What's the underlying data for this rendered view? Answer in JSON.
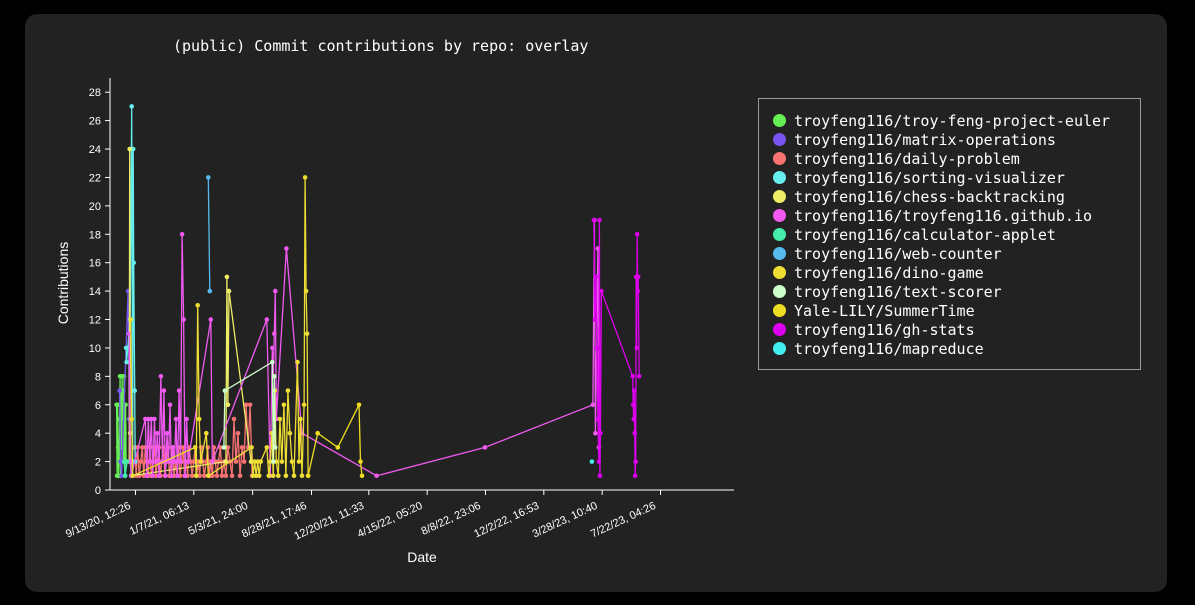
{
  "chart_data": {
    "type": "line",
    "title": "(public) Commit contributions by repo: overlay",
    "xlabel": "Date",
    "ylabel": "Contributions",
    "ylim": [
      0,
      29
    ],
    "yticks": [
      0,
      2,
      4,
      6,
      8,
      10,
      12,
      14,
      16,
      18,
      20,
      22,
      24,
      26,
      28
    ],
    "xlim": [
      "2020-07-25T00:00",
      "2023-12-15T00:00"
    ],
    "xticks": [
      {
        "t": "2020-09-13T12:26",
        "label": "9/13/20, 12:26"
      },
      {
        "t": "2021-01-07T06:13",
        "label": "1/7/21, 06:13"
      },
      {
        "t": "2021-05-04T00:00",
        "label": "5/3/21, 24:00"
      },
      {
        "t": "2021-08-28T17:46",
        "label": "8/28/21, 17:46"
      },
      {
        "t": "2021-12-20T11:33",
        "label": "12/20/21, 11:33"
      },
      {
        "t": "2022-04-15T05:20",
        "label": "4/15/22, 05:20"
      },
      {
        "t": "2022-08-08T23:06",
        "label": "8/8/22, 23:06"
      },
      {
        "t": "2022-12-02T16:53",
        "label": "12/2/22, 16:53"
      },
      {
        "t": "2023-03-28T10:40",
        "label": "3/28/23, 10:40"
      },
      {
        "t": "2023-07-22T04:26",
        "label": "7/22/23, 04:26"
      }
    ],
    "grid": false,
    "legend_position": "right",
    "series": [
      {
        "name": "troyfeng116/troy-feng-project-euler",
        "color": "#66ee55",
        "points": [
          [
            "2020-08-07",
            6
          ],
          [
            "2020-08-08",
            1
          ],
          [
            "2020-08-09",
            6
          ],
          [
            "2020-08-10",
            3
          ],
          [
            "2020-08-11",
            1
          ],
          [
            "2020-08-12",
            2
          ],
          [
            "2020-08-13",
            5
          ],
          [
            "2020-08-14",
            8
          ],
          [
            "2020-08-15",
            1
          ],
          [
            "2020-08-16",
            7
          ],
          [
            "2020-08-17",
            3
          ],
          [
            "2020-08-18",
            8
          ],
          [
            "2020-08-19",
            5
          ],
          [
            "2020-08-20",
            7
          ],
          [
            "2020-08-21",
            2
          ],
          [
            "2020-08-22",
            8
          ],
          [
            "2020-08-23",
            4
          ],
          [
            "2020-08-24",
            1
          ],
          [
            "2020-08-25",
            6
          ],
          [
            "2020-08-26",
            2
          ]
        ]
      },
      {
        "name": "troyfeng116/matrix-operations",
        "color": "#7755ee",
        "points": [
          [
            "2020-08-13",
            7
          ],
          [
            "2020-08-15",
            2
          ],
          [
            "2020-08-17",
            1
          ],
          [
            "2020-08-30",
            14
          ],
          [
            "2020-09-01",
            5
          ],
          [
            "2020-09-03",
            2
          ],
          [
            "2020-09-05",
            1
          ]
        ]
      },
      {
        "name": "troyfeng116/daily-problem",
        "color": "#f87272",
        "points": [
          [
            "2020-09-12",
            3
          ],
          [
            "2020-09-15",
            1
          ],
          [
            "2020-09-18",
            3
          ],
          [
            "2020-09-21",
            1
          ],
          [
            "2020-09-24",
            2
          ],
          [
            "2020-09-27",
            3
          ],
          [
            "2020-09-30",
            1
          ],
          [
            "2020-10-03",
            3
          ],
          [
            "2020-10-06",
            2
          ],
          [
            "2020-10-09",
            1
          ],
          [
            "2020-10-12",
            3
          ],
          [
            "2020-10-15",
            1
          ],
          [
            "2020-10-18",
            2
          ],
          [
            "2020-10-21",
            3
          ],
          [
            "2020-10-24",
            1
          ],
          [
            "2020-10-27",
            2
          ],
          [
            "2020-10-30",
            3
          ],
          [
            "2020-11-02",
            1
          ],
          [
            "2020-11-05",
            2
          ],
          [
            "2020-11-08",
            3
          ],
          [
            "2020-11-11",
            1
          ],
          [
            "2020-11-14",
            2
          ],
          [
            "2020-11-17",
            3
          ],
          [
            "2020-11-20",
            1
          ],
          [
            "2020-11-23",
            2
          ],
          [
            "2020-11-26",
            3
          ],
          [
            "2020-11-29",
            1
          ],
          [
            "2020-12-02",
            2
          ],
          [
            "2020-12-05",
            1
          ],
          [
            "2020-12-08",
            3
          ],
          [
            "2020-12-11",
            1
          ],
          [
            "2020-12-14",
            2
          ],
          [
            "2020-12-17",
            3
          ],
          [
            "2020-12-20",
            1
          ],
          [
            "2020-12-23",
            2
          ],
          [
            "2020-12-26",
            1
          ],
          [
            "2020-12-29",
            3
          ],
          [
            "2021-01-01",
            2
          ],
          [
            "2021-01-04",
            1
          ],
          [
            "2021-01-07",
            2
          ],
          [
            "2021-01-10",
            3
          ],
          [
            "2021-01-13",
            1
          ],
          [
            "2021-01-16",
            2
          ],
          [
            "2021-01-19",
            1
          ],
          [
            "2021-01-22",
            3
          ],
          [
            "2021-01-25",
            2
          ],
          [
            "2021-01-28",
            1
          ],
          [
            "2021-02-01",
            2
          ],
          [
            "2021-02-04",
            3
          ],
          [
            "2021-02-07",
            1
          ],
          [
            "2021-02-10",
            2
          ],
          [
            "2021-02-13",
            1
          ],
          [
            "2021-02-16",
            3
          ],
          [
            "2021-02-19",
            2
          ],
          [
            "2021-02-22",
            1
          ],
          [
            "2021-02-25",
            2
          ],
          [
            "2021-03-01",
            3
          ],
          [
            "2021-03-04",
            1
          ],
          [
            "2021-03-08",
            2
          ],
          [
            "2021-03-12",
            1
          ],
          [
            "2021-03-16",
            3
          ],
          [
            "2021-03-20",
            2
          ],
          [
            "2021-03-24",
            1
          ],
          [
            "2021-03-28",
            5
          ],
          [
            "2021-04-01",
            2
          ],
          [
            "2021-04-05",
            4
          ],
          [
            "2021-04-09",
            1
          ],
          [
            "2021-04-13",
            3
          ],
          [
            "2021-04-17",
            2
          ],
          [
            "2021-04-21",
            6
          ],
          [
            "2021-04-25",
            3
          ],
          [
            "2021-04-29",
            6
          ],
          [
            "2021-05-03",
            1
          ]
        ]
      },
      {
        "name": "troyfeng116/sorting-visualizer",
        "color": "#66eeee",
        "points": [
          [
            "2020-08-26",
            10
          ],
          [
            "2020-08-27",
            9
          ],
          [
            "2020-09-03",
            12
          ],
          [
            "2020-09-06",
            27
          ],
          [
            "2020-09-08",
            2
          ],
          [
            "2020-09-09",
            24
          ],
          [
            "2020-09-10",
            16
          ],
          [
            "2020-09-12",
            7
          ],
          [
            "2020-09-13",
            2
          ]
        ]
      },
      {
        "name": "troyfeng116/chess-backtracking",
        "color": "#eeee66",
        "points": [
          [
            "2020-09-01",
            2
          ],
          [
            "2020-09-02",
            24
          ],
          [
            "2020-09-03",
            4
          ],
          [
            "2020-09-05",
            1
          ],
          [
            "2021-03-12",
            2
          ],
          [
            "2021-03-14",
            15
          ],
          [
            "2021-03-16",
            6
          ],
          [
            "2021-03-18",
            14
          ],
          [
            "2021-05-01",
            2
          ]
        ]
      },
      {
        "name": "troyfeng116/troyfeng116.github.io",
        "color": "#f05af0",
        "points": [
          [
            "2020-09-01",
            11
          ],
          [
            "2020-09-03",
            2
          ],
          [
            "2020-09-05",
            1
          ],
          [
            "2020-10-03",
            5
          ],
          [
            "2020-10-06",
            1
          ],
          [
            "2020-10-09",
            5
          ],
          [
            "2020-10-12",
            2
          ],
          [
            "2020-10-15",
            5
          ],
          [
            "2020-10-18",
            1
          ],
          [
            "2020-10-21",
            5
          ],
          [
            "2020-10-24",
            2
          ],
          [
            "2020-10-27",
            4
          ],
          [
            "2020-10-30",
            1
          ],
          [
            "2020-11-03",
            8
          ],
          [
            "2020-11-06",
            2
          ],
          [
            "2020-11-09",
            7
          ],
          [
            "2020-11-12",
            1
          ],
          [
            "2020-11-15",
            4
          ],
          [
            "2020-11-18",
            2
          ],
          [
            "2020-11-21",
            6
          ],
          [
            "2020-11-24",
            1
          ],
          [
            "2020-11-27",
            3
          ],
          [
            "2020-11-30",
            2
          ],
          [
            "2020-12-03",
            5
          ],
          [
            "2020-12-06",
            1
          ],
          [
            "2020-12-09",
            7
          ],
          [
            "2020-12-12",
            2
          ],
          [
            "2020-12-15",
            18
          ],
          [
            "2020-12-18",
            12
          ],
          [
            "2020-12-21",
            1
          ],
          [
            "2020-12-24",
            5
          ],
          [
            "2020-12-27",
            2
          ],
          [
            "2021-02-10",
            12
          ],
          [
            "2021-02-13",
            2
          ],
          [
            "2021-06-01",
            12
          ],
          [
            "2021-06-08",
            1
          ],
          [
            "2021-06-12",
            10
          ],
          [
            "2021-06-14",
            8
          ],
          [
            "2021-06-16",
            11
          ],
          [
            "2021-06-18",
            14
          ],
          [
            "2021-06-20",
            5
          ],
          [
            "2021-07-10",
            17
          ],
          [
            "2021-08-10",
            4
          ],
          [
            "2022-01-05",
            1
          ],
          [
            "2022-08-08",
            3
          ],
          [
            "2023-03-10",
            6
          ],
          [
            "2023-03-13",
            19
          ],
          [
            "2023-03-15",
            4
          ],
          [
            "2023-03-18",
            12
          ],
          [
            "2023-03-20",
            17
          ],
          [
            "2023-03-22",
            3
          ]
        ]
      },
      {
        "name": "troyfeng116/calculator-applet",
        "color": "#44eeaa",
        "points": [
          [
            "2020-08-22",
            2
          ],
          [
            "2020-08-24",
            1
          ],
          [
            "2020-08-28",
            2
          ]
        ]
      },
      {
        "name": "troyfeng116/web-counter",
        "color": "#55bbee",
        "points": [
          [
            "2021-02-05",
            22
          ],
          [
            "2021-02-08",
            14
          ]
        ]
      },
      {
        "name": "troyfeng116/dino-game",
        "color": "#eedd33",
        "points": [
          [
            "2020-09-04",
            12
          ],
          [
            "2020-09-06",
            5
          ],
          [
            "2020-09-08",
            1
          ],
          [
            "2021-01-10",
            3
          ],
          [
            "2021-01-12",
            1
          ],
          [
            "2021-01-15",
            13
          ],
          [
            "2021-01-18",
            5
          ],
          [
            "2021-01-21",
            2
          ],
          [
            "2021-02-01",
            4
          ],
          [
            "2021-02-05",
            1
          ],
          [
            "2021-05-02",
            3
          ],
          [
            "2021-05-05",
            1
          ],
          [
            "2021-05-08",
            2
          ],
          [
            "2021-05-11",
            1
          ],
          [
            "2021-05-14",
            2
          ],
          [
            "2021-05-17",
            1
          ],
          [
            "2021-05-20",
            2
          ],
          [
            "2021-06-01",
            3
          ],
          [
            "2021-06-05",
            1
          ],
          [
            "2021-06-08",
            2
          ],
          [
            "2021-06-11",
            4
          ],
          [
            "2021-06-14",
            1
          ],
          [
            "2021-06-17",
            7
          ],
          [
            "2021-06-20",
            2
          ],
          [
            "2021-06-24",
            1
          ],
          [
            "2021-06-27",
            5
          ],
          [
            "2021-07-01",
            2
          ],
          [
            "2021-07-05",
            6
          ],
          [
            "2021-07-09",
            1
          ],
          [
            "2021-07-13",
            7
          ],
          [
            "2021-07-17",
            4
          ],
          [
            "2021-07-21",
            2
          ],
          [
            "2021-07-25",
            1
          ],
          [
            "2021-08-01",
            9
          ],
          [
            "2021-08-04",
            2
          ],
          [
            "2021-08-07",
            5
          ],
          [
            "2021-08-10",
            1
          ],
          [
            "2021-08-14",
            6
          ],
          [
            "2021-08-16",
            22
          ],
          [
            "2021-08-18",
            14
          ],
          [
            "2021-08-20",
            11
          ],
          [
            "2021-08-22",
            1
          ]
        ]
      },
      {
        "name": "troyfeng116/text-scorer",
        "color": "#ccffcc",
        "points": [
          [
            "2021-03-08",
            3
          ],
          [
            "2021-03-10",
            7
          ],
          [
            "2021-06-12",
            9
          ],
          [
            "2021-06-14",
            2
          ],
          [
            "2021-06-16",
            8
          ],
          [
            "2021-06-18",
            3
          ]
        ]
      },
      {
        "name": "Yale-LILY/SummerTime",
        "color": "#eedd22",
        "points": [
          [
            "2021-08-22",
            1
          ],
          [
            "2021-09-10",
            4
          ],
          [
            "2021-10-20",
            3
          ],
          [
            "2021-12-01",
            6
          ],
          [
            "2021-12-04",
            2
          ],
          [
            "2021-12-07",
            1
          ]
        ]
      },
      {
        "name": "troyfeng116/gh-stats",
        "color": "#dd00ee",
        "points": [
          [
            "2023-03-12",
            19
          ],
          [
            "2023-03-14",
            12
          ],
          [
            "2023-03-16",
            15
          ],
          [
            "2023-03-18",
            10
          ],
          [
            "2023-03-20",
            5
          ],
          [
            "2023-03-22",
            2
          ],
          [
            "2023-03-23",
            19
          ],
          [
            "2023-03-24",
            1
          ],
          [
            "2023-03-25",
            4
          ],
          [
            "2023-03-27",
            14
          ],
          [
            "2023-05-28",
            8
          ],
          [
            "2023-05-29",
            6
          ],
          [
            "2023-05-30",
            5
          ],
          [
            "2023-05-31",
            7
          ],
          [
            "2023-06-01",
            4
          ],
          [
            "2023-06-02",
            1
          ],
          [
            "2023-06-03",
            2
          ],
          [
            "2023-06-04",
            15
          ],
          [
            "2023-06-05",
            10
          ],
          [
            "2023-06-06",
            18
          ],
          [
            "2023-06-07",
            14
          ],
          [
            "2023-06-08",
            15
          ],
          [
            "2023-06-10",
            8
          ]
        ]
      },
      {
        "name": "troyfeng116/mapreduce",
        "color": "#44eeee",
        "points": [
          [
            "2023-03-08",
            2
          ]
        ]
      }
    ]
  }
}
